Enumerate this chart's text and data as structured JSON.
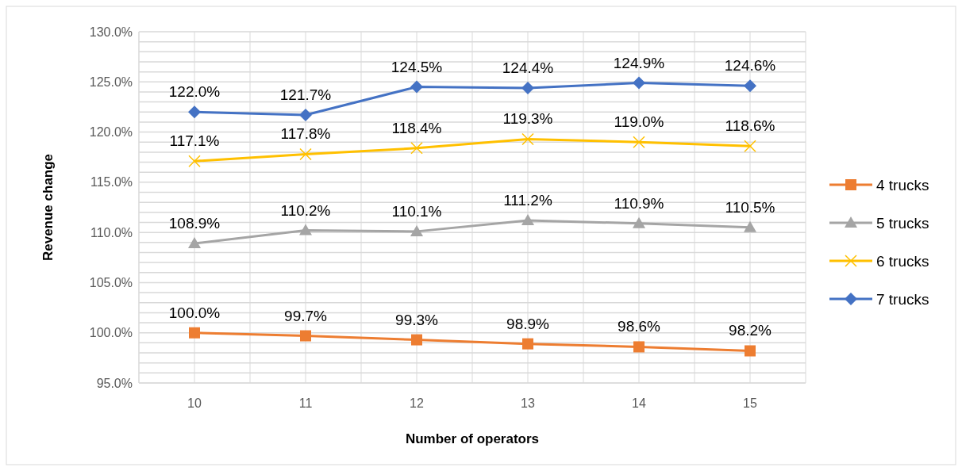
{
  "chart_data": {
    "type": "line",
    "xlabel": "Number of operators",
    "ylabel": "Revenue change",
    "categories": [
      "10",
      "11",
      "12",
      "13",
      "14",
      "15"
    ],
    "series": [
      {
        "name": "4 trucks",
        "color": "#ed7d31",
        "marker": "square",
        "values": [
          100.0,
          99.7,
          99.3,
          98.9,
          98.6,
          98.2
        ],
        "value_labels": [
          "100.0%",
          "99.7%",
          "99.3%",
          "98.9%",
          "98.6%",
          "98.2%"
        ]
      },
      {
        "name": "5 trucks",
        "color": "#a5a5a5",
        "marker": "triangle",
        "values": [
          108.9,
          110.2,
          110.1,
          111.2,
          110.9,
          110.5
        ],
        "value_labels": [
          "108.9%",
          "110.2%",
          "110.1%",
          "111.2%",
          "110.9%",
          "110.5%"
        ]
      },
      {
        "name": "6 trucks",
        "color": "#ffc000",
        "marker": "cross",
        "values": [
          117.1,
          117.8,
          118.4,
          119.3,
          119.0,
          118.6
        ],
        "value_labels": [
          "117.1%",
          "117.8%",
          "118.4%",
          "119.3%",
          "119.0%",
          "118.6%"
        ]
      },
      {
        "name": "7 trucks",
        "color": "#4472c4",
        "marker": "diamond",
        "values": [
          122.0,
          121.7,
          124.5,
          124.4,
          124.9,
          124.6
        ],
        "value_labels": [
          "122.0%",
          "121.7%",
          "124.5%",
          "124.4%",
          "124.9%",
          "124.6%"
        ]
      }
    ],
    "ylim": [
      95,
      130
    ],
    "yticks": [
      {
        "value": 95,
        "label": "95.0%"
      },
      {
        "value": 96,
        "label": null
      },
      {
        "value": 97,
        "label": null
      },
      {
        "value": 98,
        "label": null
      },
      {
        "value": 99,
        "label": null
      },
      {
        "value": 100,
        "label": "100.0%"
      },
      {
        "value": 101,
        "label": null
      },
      {
        "value": 102,
        "label": null
      },
      {
        "value": 103,
        "label": null
      },
      {
        "value": 104,
        "label": null
      },
      {
        "value": 105,
        "label": "105.0%"
      },
      {
        "value": 106,
        "label": null
      },
      {
        "value": 107,
        "label": null
      },
      {
        "value": 108,
        "label": null
      },
      {
        "value": 109,
        "label": null
      },
      {
        "value": 110,
        "label": "110.0%"
      },
      {
        "value": 111,
        "label": null
      },
      {
        "value": 112,
        "label": null
      },
      {
        "value": 113,
        "label": null
      },
      {
        "value": 114,
        "label": null
      },
      {
        "value": 115,
        "label": "115.0%"
      },
      {
        "value": 116,
        "label": null
      },
      {
        "value": 117,
        "label": null
      },
      {
        "value": 118,
        "label": null
      },
      {
        "value": 119,
        "label": null
      },
      {
        "value": 120,
        "label": "120.0%"
      },
      {
        "value": 121,
        "label": null
      },
      {
        "value": 122,
        "label": null
      },
      {
        "value": 123,
        "label": null
      },
      {
        "value": 124,
        "label": null
      },
      {
        "value": 125,
        "label": "125.0%"
      },
      {
        "value": 126,
        "label": null
      },
      {
        "value": 127,
        "label": null
      },
      {
        "value": 128,
        "label": null
      },
      {
        "value": 129,
        "label": null
      },
      {
        "value": 130,
        "label": "130.0%"
      }
    ],
    "grid": true,
    "legend": "right",
    "line_style": "solid"
  }
}
